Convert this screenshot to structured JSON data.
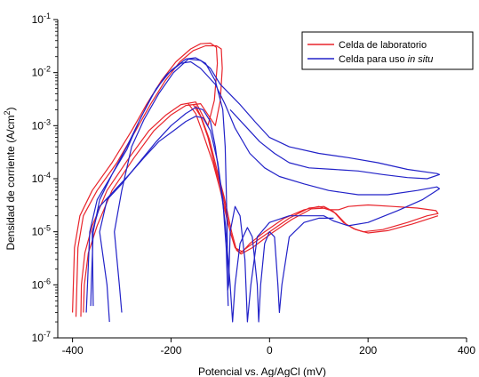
{
  "chart_data": {
    "type": "line",
    "title": "",
    "xlabel": "Potencial vs. Ag/AgCl (mV)",
    "ylabel_main": "Densidad de corriente (A/cm",
    "ylabel_sup": "2",
    "ylabel_end": ")",
    "xlim": [
      -430,
      400
    ],
    "ylim": [
      1e-07,
      0.1
    ],
    "yscale": "log",
    "grid": false,
    "legend_position": "top-right",
    "x_ticks": [
      -400,
      -200,
      0,
      200,
      400
    ],
    "x_tick_labels": [
      "-400",
      "-200",
      "0",
      "200",
      "400"
    ],
    "y_ticks": [
      1e-07,
      1e-06,
      1e-05,
      0.0001,
      0.001,
      0.01,
      0.1
    ],
    "y_tick_labels": [
      {
        "base": "10",
        "exp": "-7"
      },
      {
        "base": "10",
        "exp": "-6"
      },
      {
        "base": "10",
        "exp": "-5"
      },
      {
        "base": "10",
        "exp": "-4"
      },
      {
        "base": "10",
        "exp": "-3"
      },
      {
        "base": "10",
        "exp": "-2"
      },
      {
        "base": "10",
        "exp": "-1"
      }
    ],
    "series": [
      {
        "name": "Celda de laboratorio",
        "legend_text": "Celda de laboratorio",
        "color": "#e8242b",
        "curves": [
          [
            [
              -400,
              3e-07
            ],
            [
              -396,
              5e-06
            ],
            [
              -385,
              2e-05
            ],
            [
              -360,
              6e-05
            ],
            [
              -320,
              0.0002
            ],
            [
              -280,
              0.0008
            ],
            [
              -250,
              0.0025
            ],
            [
              -220,
              0.007
            ],
            [
              -190,
              0.016
            ],
            [
              -160,
              0.028
            ],
            [
              -140,
              0.035
            ],
            [
              -120,
              0.036
            ],
            [
              -108,
              0.03
            ],
            [
              -106,
              0.015
            ],
            [
              -112,
              0.003
            ],
            [
              -125,
              0.001
            ],
            [
              -150,
              0.0028
            ],
            [
              -180,
              0.0025
            ],
            [
              -210,
              0.0016
            ],
            [
              -245,
              0.0008
            ],
            [
              -285,
              0.00025
            ],
            [
              -330,
              6e-05
            ],
            [
              -360,
              1.3e-05
            ],
            [
              -375,
              4e-06
            ],
            [
              -382,
              1e-06
            ],
            [
              -383,
              2.5e-07
            ]
          ],
          [
            [
              -393,
              2.5e-07
            ],
            [
              -389,
              5e-06
            ],
            [
              -378,
              2e-05
            ],
            [
              -350,
              6e-05
            ],
            [
              -310,
              0.0002
            ],
            [
              -272,
              0.0008
            ],
            [
              -242,
              0.0025
            ],
            [
              -212,
              0.007
            ],
            [
              -182,
              0.016
            ],
            [
              -155,
              0.026
            ],
            [
              -130,
              0.032
            ],
            [
              -108,
              0.032
            ],
            [
              -98,
              0.028
            ],
            [
              -96,
              0.012
            ],
            [
              -100,
              0.003
            ],
            [
              -110,
              0.001
            ],
            [
              -140,
              0.0026
            ],
            [
              -170,
              0.0024
            ],
            [
              -200,
              0.0016
            ],
            [
              -235,
              0.0008
            ],
            [
              -275,
              0.00025
            ],
            [
              -320,
              6e-05
            ],
            [
              -350,
              1.3e-05
            ],
            [
              -368,
              4e-06
            ],
            [
              -376,
              1e-06
            ],
            [
              -378,
              3e-07
            ]
          ],
          [
            [
              -155,
              0.0025
            ],
            [
              -140,
              0.0015
            ],
            [
              -125,
              0.0006
            ],
            [
              -110,
              0.00016
            ],
            [
              -95,
              5e-05
            ],
            [
              -80,
              1e-05
            ],
            [
              -70,
              5e-06
            ],
            [
              -60,
              4e-06
            ],
            [
              -40,
              5.5e-06
            ],
            [
              0,
              1e-05
            ],
            [
              40,
              1.8e-05
            ],
            [
              80,
              2.8e-05
            ],
            [
              110,
              3e-05
            ],
            [
              130,
              2.4e-05
            ],
            [
              150,
              1.5e-05
            ],
            [
              170,
              1.15e-05
            ],
            [
              190,
              1e-05
            ],
            [
              230,
              1.1e-05
            ],
            [
              280,
              1.5e-05
            ],
            [
              320,
              2e-05
            ],
            [
              342,
              2.2e-05
            ],
            [
              338,
              2.5e-05
            ],
            [
              300,
              2.8e-05
            ],
            [
              250,
              3e-05
            ],
            [
              200,
              3.2e-05
            ],
            [
              160,
              3e-05
            ],
            [
              140,
              2.6e-05
            ],
            [
              120,
              2.6e-05
            ],
            [
              100,
              3e-05
            ],
            [
              70,
              2.6e-05
            ],
            [
              30,
              1.8e-05
            ],
            [
              -10,
              1e-05
            ],
            [
              -40,
              6e-06
            ],
            [
              -55,
              4.2e-06
            ],
            [
              -70,
              5e-06
            ],
            [
              -85,
              1.5e-05
            ],
            [
              -100,
              6e-05
            ],
            [
              -115,
              0.0002
            ],
            [
              -135,
              0.0007
            ],
            [
              -150,
              0.0017
            ],
            [
              -165,
              0.0026
            ]
          ],
          [
            [
              -150,
              0.0024
            ],
            [
              -138,
              0.0014
            ],
            [
              -122,
              0.00055
            ],
            [
              -107,
              0.00015
            ],
            [
              -92,
              4.5e-05
            ],
            [
              -77,
              1e-05
            ],
            [
              -67,
              4.5e-06
            ],
            [
              -58,
              3.8e-06
            ],
            [
              -35,
              5e-06
            ],
            [
              5,
              9.5e-06
            ],
            [
              45,
              1.7e-05
            ],
            [
              85,
              2.7e-05
            ],
            [
              115,
              2.8e-05
            ],
            [
              135,
              2.2e-05
            ],
            [
              155,
              1.4e-05
            ],
            [
              175,
              1.1e-05
            ],
            [
              200,
              9.5e-06
            ],
            [
              240,
              1.05e-05
            ],
            [
              290,
              1.4e-05
            ],
            [
              342,
              2e-05
            ]
          ]
        ]
      },
      {
        "name": "Celda para uso in situ",
        "legend_text": "Celda para uso ",
        "legend_text_italic": "in situ",
        "color": "#2222c8",
        "curves": [
          [
            [
              -372,
              3e-07
            ],
            [
              -365,
              1e-05
            ],
            [
              -350,
              4e-05
            ],
            [
              -320,
              0.00012
            ],
            [
              -290,
              0.0004
            ],
            [
              -260,
              0.0015
            ],
            [
              -230,
              0.005
            ],
            [
              -200,
              0.011
            ],
            [
              -170,
              0.018
            ],
            [
              -150,
              0.019
            ],
            [
              -130,
              0.015
            ],
            [
              -110,
              0.007
            ],
            [
              -95,
              0.002
            ],
            [
              -90,
              0.0004
            ],
            [
              -88,
              7e-05
            ],
            [
              -86,
              1e-05
            ],
            [
              -85,
              8e-07
            ],
            [
              -83,
              1e-06
            ],
            [
              -80,
              1e-05
            ],
            [
              -70,
              3e-05
            ],
            [
              -60,
              2e-05
            ],
            [
              -50,
              3e-06
            ],
            [
              -45,
              2e-07
            ],
            [
              -38,
              1e-06
            ],
            [
              -25,
              8e-06
            ],
            [
              0,
              1.5e-05
            ],
            [
              40,
              2e-05
            ],
            [
              80,
              2e-05
            ],
            [
              110,
              2e-05
            ],
            [
              130,
              1.6e-05
            ],
            [
              160,
              1.3e-05
            ],
            [
              200,
              1.5e-05
            ],
            [
              260,
              2.5e-05
            ],
            [
              310,
              4e-05
            ],
            [
              345,
              6.5e-05
            ],
            [
              340,
              7e-05
            ],
            [
              300,
              6e-05
            ],
            [
              240,
              5e-05
            ],
            [
              180,
              5e-05
            ],
            [
              120,
              6e-05
            ],
            [
              70,
              8e-05
            ],
            [
              20,
              0.00011
            ],
            [
              -10,
              0.00016
            ],
            [
              -40,
              0.0003
            ],
            [
              -70,
              0.0009
            ],
            [
              -90,
              0.0025
            ],
            [
              -110,
              0.006
            ],
            [
              -140,
              0.012
            ],
            [
              -160,
              0.016
            ],
            [
              -180,
              0.015
            ],
            [
              -210,
              0.009
            ],
            [
              -240,
              0.0035
            ],
            [
              -265,
              0.0012
            ],
            [
              -290,
              0.00035
            ],
            [
              -320,
              0.00012
            ],
            [
              -345,
              4e-05
            ],
            [
              -358,
              1e-05
            ],
            [
              -362,
              1e-06
            ],
            [
              -363,
              4e-07
            ]
          ],
          [
            [
              -300,
              3e-07
            ],
            [
              -305,
              1e-06
            ],
            [
              -315,
              1e-05
            ],
            [
              -300,
              6e-05
            ],
            [
              -280,
              0.0004
            ],
            [
              -255,
              0.0013
            ],
            [
              -225,
              0.004
            ],
            [
              -195,
              0.01
            ],
            [
              -165,
              0.018
            ],
            [
              -140,
              0.017
            ],
            [
              -120,
              0.012
            ],
            [
              -100,
              0.006
            ],
            [
              -60,
              0.0025
            ],
            [
              -30,
              0.0012
            ],
            [
              0,
              0.0006
            ],
            [
              40,
              0.0004
            ],
            [
              100,
              0.0003
            ],
            [
              160,
              0.00025
            ],
            [
              220,
              0.0002
            ],
            [
              280,
              0.00015
            ],
            [
              340,
              0.000125
            ],
            [
              345,
              0.00012
            ],
            [
              320,
              0.0001
            ],
            [
              280,
              0.000105
            ],
            [
              230,
              0.00012
            ],
            [
              180,
              0.00014
            ],
            [
              130,
              0.00015
            ],
            [
              80,
              0.00016
            ],
            [
              40,
              0.0002
            ],
            [
              10,
              0.0003
            ],
            [
              -20,
              0.0005
            ],
            [
              -50,
              0.001
            ],
            [
              -80,
              0.002
            ]
          ],
          [
            [
              -325,
              2e-07
            ],
            [
              -330,
              1e-06
            ],
            [
              -345,
              1e-05
            ],
            [
              -330,
              4e-05
            ],
            [
              -300,
              8e-05
            ],
            [
              -265,
              0.0002
            ],
            [
              -230,
              0.0005
            ],
            [
              -200,
              0.001
            ],
            [
              -170,
              0.0017
            ],
            [
              -150,
              0.0022
            ],
            [
              -135,
              0.002
            ],
            [
              -120,
              0.0012
            ],
            [
              -110,
              0.0004
            ],
            [
              -100,
              8e-05
            ],
            [
              -90,
              1.5e-05
            ],
            [
              -80,
              1e-06
            ],
            [
              -75,
              2e-07
            ],
            [
              -70,
              1e-06
            ],
            [
              -60,
              6e-06
            ],
            [
              -45,
              1.2e-05
            ],
            [
              -35,
              8e-06
            ],
            [
              -25,
              1e-06
            ],
            [
              -22,
              2e-07
            ],
            [
              -18,
              1e-06
            ],
            [
              -10,
              6e-06
            ],
            [
              0,
              1e-05
            ],
            [
              10,
              8e-06
            ],
            [
              17,
              1e-06
            ],
            [
              20,
              3e-07
            ],
            [
              25,
              1e-06
            ],
            [
              40,
              8e-06
            ],
            [
              70,
              1.5e-05
            ],
            [
              100,
              1.8e-05
            ],
            [
              130,
              1.8e-05
            ]
          ],
          [
            [
              -358,
              4e-07
            ],
            [
              -360,
              1e-05
            ],
            [
              -345,
              3e-05
            ],
            [
              -315,
              6e-05
            ],
            [
              -285,
              0.00012
            ],
            [
              -255,
              0.00025
            ],
            [
              -225,
              0.0005
            ],
            [
              -195,
              0.0008
            ],
            [
              -170,
              0.0012
            ],
            [
              -150,
              0.0015
            ],
            [
              -135,
              0.0014
            ],
            [
              -120,
              0.0008
            ],
            [
              -105,
              0.0002
            ],
            [
              -95,
              4e-05
            ],
            [
              -88,
              5e-06
            ],
            [
              -84,
              4e-07
            ]
          ]
        ]
      }
    ]
  }
}
